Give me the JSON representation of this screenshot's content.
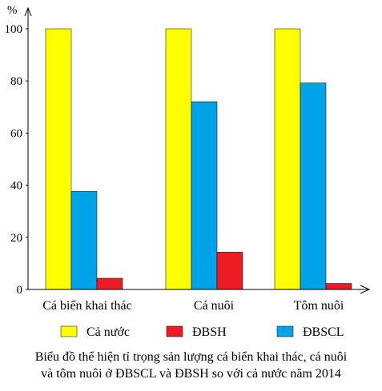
{
  "chart_data": {
    "type": "bar",
    "title": "Biểu đồ thể hiện tỉ trọng sản lượng cá biển khai thác, cá nuôi và tôm nuôi ở ĐBSCL và ĐBSH so với cả nước năm 2014",
    "title_lines": [
      "Biểu đồ thể hiện tỉ trọng sản lượng cá biển khai thác, cá nuôi",
      "và tôm nuôi ở ĐBSCL và ĐBSH so với cả nước năm 2014"
    ],
    "y_unit": "%",
    "categories": [
      "Cá biển khai thác",
      "Cá nuôi",
      "Tôm nuôi"
    ],
    "series": [
      {
        "name": "Cả nước",
        "color": "#FFFF00",
        "values": [
          100,
          100,
          100
        ]
      },
      {
        "name": "ĐBSH",
        "color": "#ED1C24",
        "values": [
          4.3,
          14.3,
          2.3
        ]
      },
      {
        "name": "ĐBSCL",
        "color": "#00A2E8",
        "values": [
          37.6,
          72.0,
          79.2
        ]
      }
    ],
    "ylim": [
      0,
      100
    ],
    "yticks": [
      0,
      20,
      40,
      60,
      80,
      100
    ],
    "grid": false,
    "legend_position": "bottom"
  }
}
